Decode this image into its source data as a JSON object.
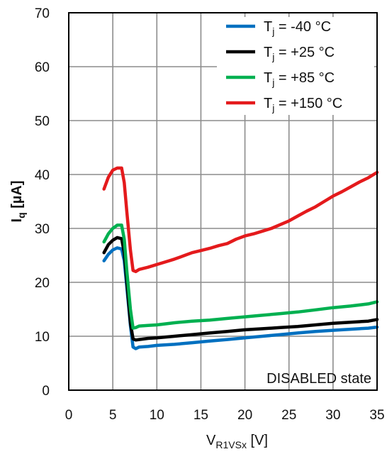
{
  "chart_data": {
    "type": "line",
    "xlabel": {
      "main": "V",
      "sub": "R1VSx",
      "unit": " [V]"
    },
    "ylabel": {
      "main": "I",
      "sub": "q",
      "unit": " [µA]"
    },
    "xlim": [
      0,
      35
    ],
    "ylim": [
      0,
      70
    ],
    "x_ticks": [
      "0",
      "5",
      "10",
      "15",
      "20",
      "25",
      "30",
      "35"
    ],
    "y_ticks": [
      "0",
      "10",
      "20",
      "30",
      "40",
      "50",
      "60",
      "70"
    ],
    "grid": true,
    "legend_position": "top-right",
    "annotation": "DISABLED state",
    "series": [
      {
        "name": "T_j = -40 °C",
        "legend": {
          "main": "T",
          "sub": "j",
          "rest": " = -40 °C"
        },
        "color": "#0070C0",
        "points": [
          [
            4,
            24.0
          ],
          [
            4.5,
            25.2
          ],
          [
            5,
            26.0
          ],
          [
            5.5,
            26.4
          ],
          [
            6,
            26.2
          ],
          [
            6.3,
            24.0
          ],
          [
            6.6,
            19.0
          ],
          [
            7,
            12.0
          ],
          [
            7.3,
            8.0
          ],
          [
            7.6,
            7.7
          ],
          [
            8,
            8.0
          ],
          [
            9,
            8.1
          ],
          [
            10,
            8.3
          ],
          [
            12,
            8.5
          ],
          [
            14,
            8.8
          ],
          [
            16,
            9.1
          ],
          [
            18,
            9.4
          ],
          [
            20,
            9.7
          ],
          [
            22,
            10.0
          ],
          [
            24,
            10.3
          ],
          [
            26,
            10.6
          ],
          [
            28,
            10.9
          ],
          [
            30,
            11.1
          ],
          [
            32,
            11.3
          ],
          [
            34,
            11.5
          ],
          [
            35,
            11.7
          ]
        ]
      },
      {
        "name": "T_j = +25 °C",
        "legend": {
          "main": "T",
          "sub": "j",
          "rest": " = +25 °C"
        },
        "color": "#000000",
        "points": [
          [
            4,
            25.5
          ],
          [
            4.5,
            27.0
          ],
          [
            5,
            27.8
          ],
          [
            5.5,
            28.3
          ],
          [
            6,
            28.1
          ],
          [
            6.3,
            25.5
          ],
          [
            6.6,
            20.0
          ],
          [
            7,
            12.5
          ],
          [
            7.3,
            9.5
          ],
          [
            7.6,
            9.3
          ],
          [
            8,
            9.4
          ],
          [
            9,
            9.6
          ],
          [
            10,
            9.7
          ],
          [
            12,
            10.0
          ],
          [
            14,
            10.3
          ],
          [
            16,
            10.6
          ],
          [
            18,
            10.9
          ],
          [
            20,
            11.2
          ],
          [
            22,
            11.4
          ],
          [
            24,
            11.6
          ],
          [
            26,
            11.8
          ],
          [
            28,
            12.1
          ],
          [
            30,
            12.4
          ],
          [
            32,
            12.6
          ],
          [
            34,
            12.8
          ],
          [
            35,
            13.1
          ]
        ]
      },
      {
        "name": "T_j = +85 °C",
        "legend": {
          "main": "T",
          "sub": "j",
          "rest": " = +85 °C"
        },
        "color": "#00B050",
        "points": [
          [
            4,
            27.5
          ],
          [
            4.5,
            29.0
          ],
          [
            5,
            30.0
          ],
          [
            5.5,
            30.6
          ],
          [
            6,
            30.6
          ],
          [
            6.3,
            28.0
          ],
          [
            6.6,
            22.0
          ],
          [
            7,
            15.0
          ],
          [
            7.3,
            11.5
          ],
          [
            7.6,
            11.6
          ],
          [
            8,
            11.9
          ],
          [
            9,
            12.0
          ],
          [
            10,
            12.1
          ],
          [
            12,
            12.5
          ],
          [
            14,
            12.8
          ],
          [
            16,
            13.0
          ],
          [
            18,
            13.3
          ],
          [
            20,
            13.6
          ],
          [
            22,
            13.9
          ],
          [
            24,
            14.2
          ],
          [
            26,
            14.5
          ],
          [
            28,
            14.9
          ],
          [
            30,
            15.3
          ],
          [
            32,
            15.6
          ],
          [
            34,
            16.0
          ],
          [
            35,
            16.4
          ]
        ]
      },
      {
        "name": "T_j = +150 °C",
        "legend": {
          "main": "T",
          "sub": "j",
          "rest": " = +150 °C"
        },
        "color": "#E41A1C",
        "points": [
          [
            4,
            37.3
          ],
          [
            4.5,
            39.5
          ],
          [
            5,
            40.8
          ],
          [
            5.5,
            41.2
          ],
          [
            6,
            41.2
          ],
          [
            6.3,
            38.5
          ],
          [
            6.6,
            33.0
          ],
          [
            7,
            26.0
          ],
          [
            7.3,
            22.2
          ],
          [
            7.6,
            22.0
          ],
          [
            8,
            22.4
          ],
          [
            9,
            22.8
          ],
          [
            10,
            23.3
          ],
          [
            11,
            23.8
          ],
          [
            12,
            24.3
          ],
          [
            13,
            24.9
          ],
          [
            14,
            25.5
          ],
          [
            15,
            25.9
          ],
          [
            16,
            26.3
          ],
          [
            17,
            26.8
          ],
          [
            18,
            27.2
          ],
          [
            19,
            28.0
          ],
          [
            20,
            28.6
          ],
          [
            21,
            29.0
          ],
          [
            22,
            29.5
          ],
          [
            23,
            30.0
          ],
          [
            24,
            30.7
          ],
          [
            25,
            31.4
          ],
          [
            26,
            32.3
          ],
          [
            27,
            33.2
          ],
          [
            28,
            34.0
          ],
          [
            29,
            35.0
          ],
          [
            30,
            36.0
          ],
          [
            31,
            36.8
          ],
          [
            32,
            37.7
          ],
          [
            33,
            38.6
          ],
          [
            34,
            39.4
          ],
          [
            35,
            40.4
          ]
        ]
      }
    ]
  }
}
